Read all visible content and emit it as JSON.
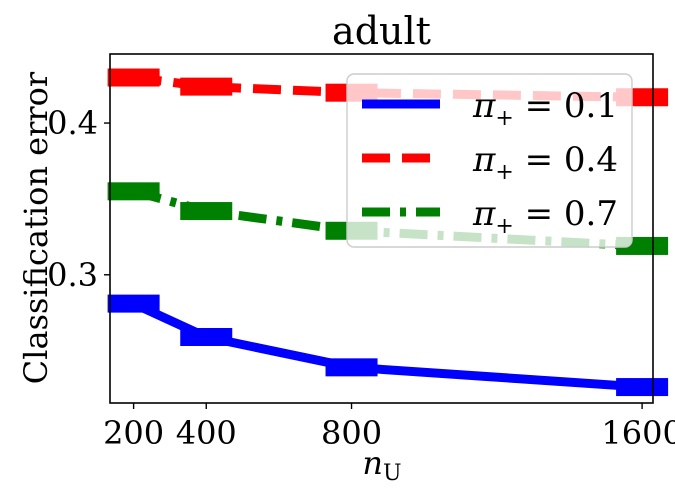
{
  "chart_data": {
    "type": "line",
    "title": "adult",
    "xlabel": "n",
    "xlabel_sub": "U",
    "ylabel": "Classification error",
    "x": [
      200,
      400,
      800,
      1600
    ],
    "x_ticks": [
      "200",
      "400",
      "800",
      "1600"
    ],
    "y_ticks": [
      {
        "value": 0.3,
        "label": "0.3"
      },
      {
        "value": 0.4,
        "label": "0.4"
      }
    ],
    "xlim": [
      135,
      1630
    ],
    "ylim": [
      0.2155,
      0.4455
    ],
    "grid": false,
    "legend_position": "upper-right",
    "series": [
      {
        "name": "π₊ = 0.1",
        "legend_prefix": "π",
        "legend_sub": "+",
        "legend_value": " = 0.1",
        "color": "#0000ff",
        "style": "solid",
        "marker": "circle",
        "values": [
          0.281,
          0.259,
          0.239,
          0.226
        ],
        "errors": [
          0.002,
          0.002,
          0.002,
          0.002
        ]
      },
      {
        "name": "π₊ = 0.4",
        "legend_prefix": "π",
        "legend_sub": "+",
        "legend_value": " = 0.4",
        "color": "#ff0000",
        "style": "dashed",
        "marker": "triangle-down",
        "values": [
          0.43,
          0.424,
          0.42,
          0.417
        ],
        "errors": [
          0.003,
          0.003,
          0.003,
          0.003
        ]
      },
      {
        "name": "π₊ = 0.7",
        "legend_prefix": "π",
        "legend_sub": "+",
        "legend_value": " = 0.7",
        "color": "#008000",
        "style": "dashdot",
        "marker": "triangle-up",
        "values": [
          0.355,
          0.342,
          0.329,
          0.319
        ],
        "errors": [
          0.003,
          0.003,
          0.002,
          0.002
        ]
      }
    ]
  }
}
